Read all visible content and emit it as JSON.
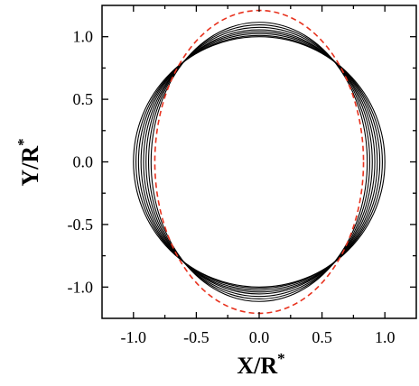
{
  "chart_data": {
    "type": "line",
    "title": "",
    "xlabel": "X/R",
    "xlabel_superscript": "*",
    "ylabel": "Y/R",
    "ylabel_superscript": "*",
    "xlim": [
      -1.25,
      1.25
    ],
    "ylim": [
      -1.25,
      1.25
    ],
    "xticks": [
      -1.0,
      -0.5,
      0.0,
      0.5,
      1.0
    ],
    "xtick_labels": [
      "-1.0",
      "-0.5",
      "0.0",
      "0.5",
      "1.0"
    ],
    "yticks": [
      -1.0,
      -0.5,
      0.0,
      0.5,
      1.0
    ],
    "ytick_labels": [
      "-1.0",
      "-0.5",
      "0.0",
      "0.5",
      "1.0"
    ],
    "grid": false,
    "legend": "none",
    "series": [
      {
        "kind": "ellipse",
        "a": 1.0,
        "b": 1.0,
        "color": "#000000",
        "dash": "solid"
      },
      {
        "kind": "ellipse",
        "a": 0.98,
        "b": 1.01,
        "color": "#000000",
        "dash": "solid"
      },
      {
        "kind": "ellipse",
        "a": 0.96,
        "b": 1.025,
        "color": "#000000",
        "dash": "solid"
      },
      {
        "kind": "ellipse",
        "a": 0.94,
        "b": 1.04,
        "color": "#000000",
        "dash": "solid"
      },
      {
        "kind": "ellipse",
        "a": 0.92,
        "b": 1.055,
        "color": "#000000",
        "dash": "solid"
      },
      {
        "kind": "ellipse",
        "a": 0.9,
        "b": 1.075,
        "color": "#000000",
        "dash": "solid"
      },
      {
        "kind": "ellipse",
        "a": 0.88,
        "b": 1.095,
        "color": "#000000",
        "dash": "solid"
      },
      {
        "kind": "ellipse",
        "a": 0.86,
        "b": 1.115,
        "color": "#000000",
        "dash": "solid"
      },
      {
        "kind": "ellipse",
        "a": 0.83,
        "b": 1.21,
        "color": "#e8321e",
        "dash": "dashed"
      }
    ]
  }
}
